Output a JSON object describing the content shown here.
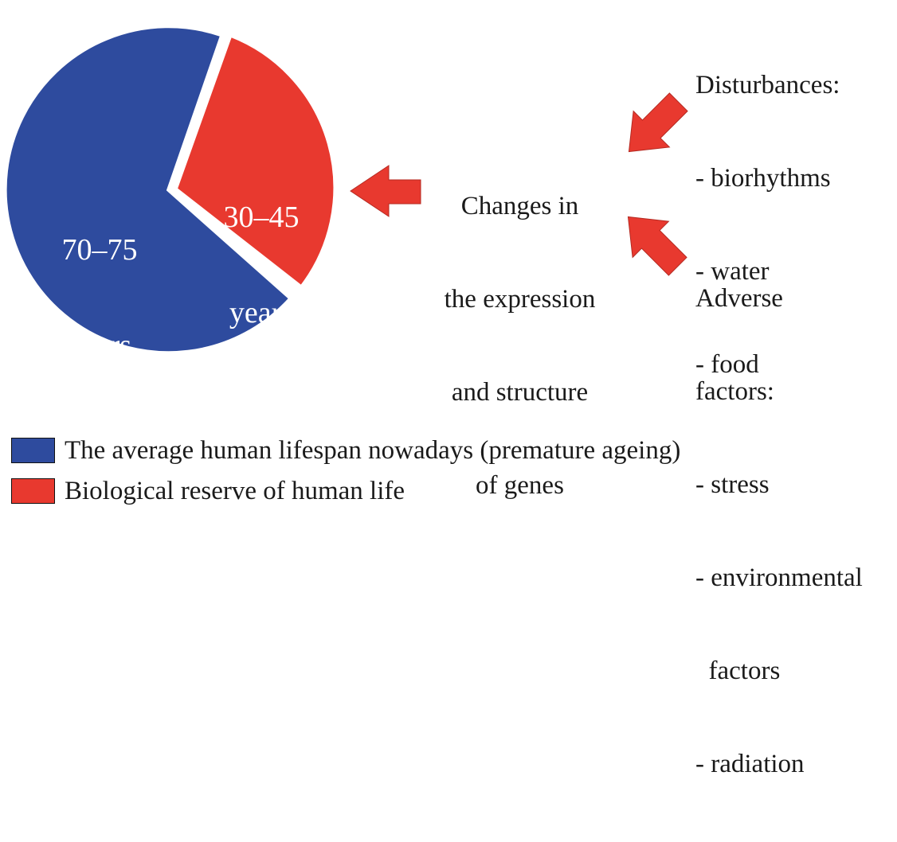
{
  "colors": {
    "blue": "#2E4B9E",
    "red": "#E8392F",
    "text": "#1a1a1a"
  },
  "pie": {
    "major_label": [
      "70–75",
      "years"
    ],
    "minor_label": [
      "30–45",
      "years"
    ]
  },
  "center_text": [
    "Changes in",
    "the expression",
    "and structure",
    "of genes"
  ],
  "disturbances": {
    "title": "Disturbances:",
    "items": [
      "- biorhythms",
      "- water",
      "- food"
    ]
  },
  "adverse": {
    "title_lines": [
      "Adverse",
      "factors:"
    ],
    "items": [
      "- stress",
      "- environmental",
      "  factors",
      "- radiation"
    ]
  },
  "legend": [
    {
      "color": "#2E4B9E",
      "label": "The average human lifespan nowadays (premature ageing)"
    },
    {
      "color": "#E8392F",
      "label": "Biological reserve of human life"
    }
  ]
}
